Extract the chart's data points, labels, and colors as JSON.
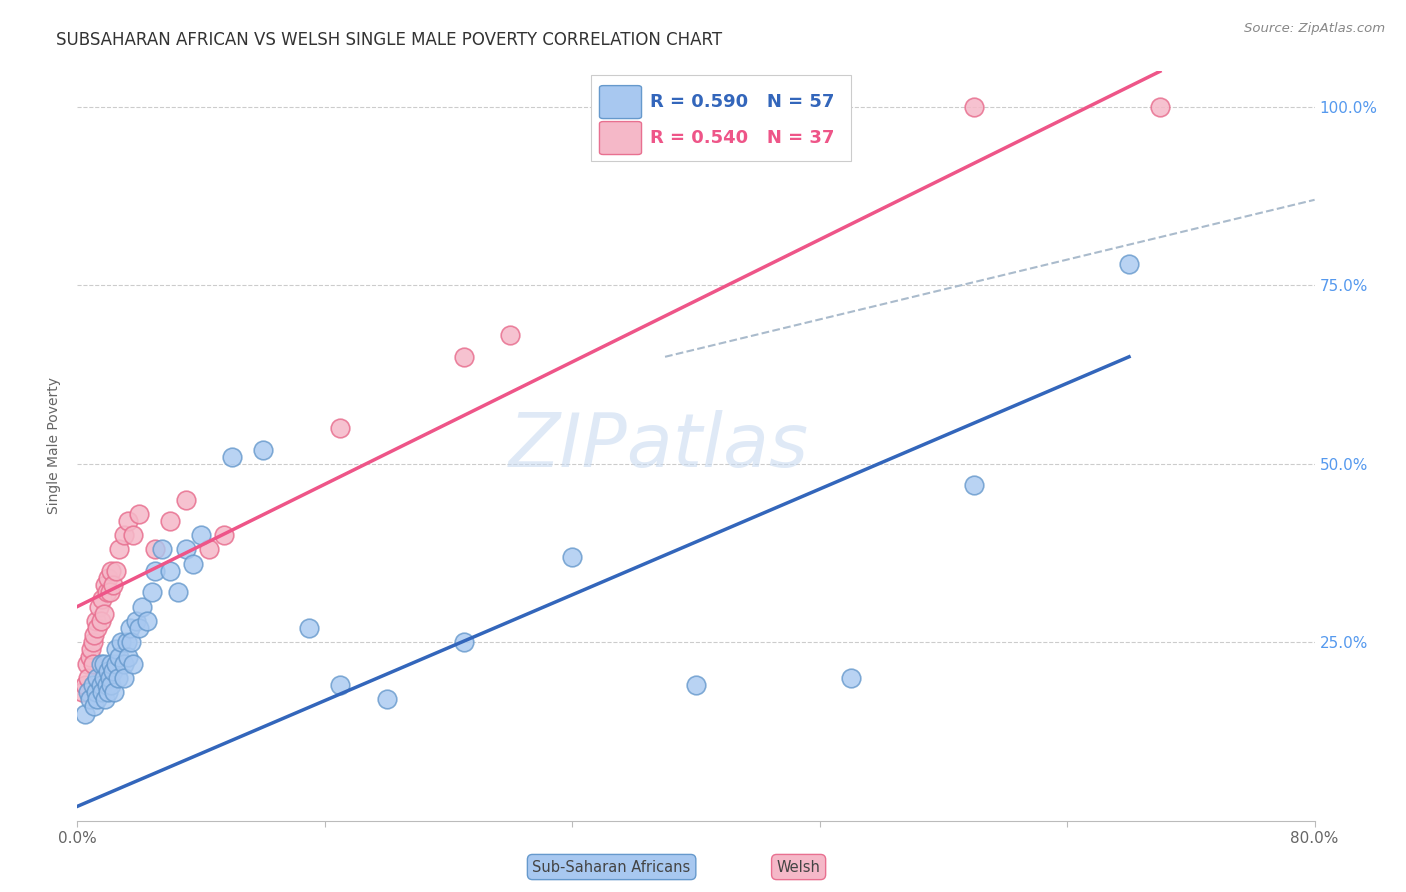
{
  "title": "SUBSAHARAN AFRICAN VS WELSH SINGLE MALE POVERTY CORRELATION CHART",
  "source": "Source: ZipAtlas.com",
  "ylabel": "Single Male Poverty",
  "blue_R": 0.59,
  "blue_N": 57,
  "pink_R": 0.54,
  "pink_N": 37,
  "blue_scatter_color": "#A8C8F0",
  "pink_scatter_color": "#F5B8C8",
  "blue_edge_color": "#6699CC",
  "pink_edge_color": "#E87090",
  "blue_line_color": "#3366BB",
  "pink_line_color": "#EE5588",
  "dashed_line_color": "#AABBCC",
  "background_color": "#FFFFFF",
  "grid_color": "#CCCCCC",
  "title_color": "#333333",
  "right_axis_color": "#5599EE",
  "watermark_color": "#C5D8F0",
  "legend_text_blue": "R = 0.590   N = 57",
  "legend_text_pink": "R = 0.540   N = 37",
  "bottom_legend_blue": "Sub-Saharan Africans",
  "bottom_legend_pink": "Welsh",
  "blue_points_x": [
    0.005,
    0.007,
    0.008,
    0.01,
    0.011,
    0.012,
    0.013,
    0.013,
    0.015,
    0.015,
    0.016,
    0.017,
    0.017,
    0.018,
    0.019,
    0.02,
    0.02,
    0.021,
    0.022,
    0.022,
    0.023,
    0.024,
    0.025,
    0.025,
    0.026,
    0.027,
    0.028,
    0.03,
    0.03,
    0.032,
    0.033,
    0.034,
    0.035,
    0.036,
    0.038,
    0.04,
    0.042,
    0.045,
    0.048,
    0.05,
    0.055,
    0.06,
    0.065,
    0.07,
    0.075,
    0.08,
    0.1,
    0.12,
    0.15,
    0.17,
    0.2,
    0.25,
    0.32,
    0.4,
    0.5,
    0.58,
    0.68
  ],
  "blue_points_y": [
    0.15,
    0.18,
    0.17,
    0.19,
    0.16,
    0.18,
    0.2,
    0.17,
    0.19,
    0.22,
    0.18,
    0.2,
    0.22,
    0.17,
    0.19,
    0.21,
    0.18,
    0.2,
    0.22,
    0.19,
    0.21,
    0.18,
    0.22,
    0.24,
    0.2,
    0.23,
    0.25,
    0.22,
    0.2,
    0.25,
    0.23,
    0.27,
    0.25,
    0.22,
    0.28,
    0.27,
    0.3,
    0.28,
    0.32,
    0.35,
    0.38,
    0.35,
    0.32,
    0.38,
    0.36,
    0.4,
    0.51,
    0.52,
    0.27,
    0.19,
    0.17,
    0.25,
    0.37,
    0.19,
    0.2,
    0.47,
    0.78
  ],
  "pink_points_x": [
    0.003,
    0.005,
    0.006,
    0.007,
    0.008,
    0.009,
    0.01,
    0.01,
    0.011,
    0.012,
    0.013,
    0.014,
    0.015,
    0.016,
    0.017,
    0.018,
    0.019,
    0.02,
    0.021,
    0.022,
    0.023,
    0.025,
    0.027,
    0.03,
    0.033,
    0.036,
    0.04,
    0.05,
    0.06,
    0.07,
    0.085,
    0.095,
    0.17,
    0.25,
    0.28,
    0.58,
    0.7
  ],
  "pink_points_y": [
    0.18,
    0.19,
    0.22,
    0.2,
    0.23,
    0.24,
    0.22,
    0.25,
    0.26,
    0.28,
    0.27,
    0.3,
    0.28,
    0.31,
    0.29,
    0.33,
    0.32,
    0.34,
    0.32,
    0.35,
    0.33,
    0.35,
    0.38,
    0.4,
    0.42,
    0.4,
    0.43,
    0.38,
    0.42,
    0.45,
    0.38,
    0.4,
    0.55,
    0.65,
    0.68,
    1.0,
    1.0
  ],
  "xlim": [
    0.0,
    0.8
  ],
  "ylim": [
    0.0,
    1.05
  ],
  "blue_line_x0": 0.0,
  "blue_line_y0": 0.02,
  "blue_line_x1": 0.68,
  "blue_line_y1": 0.65,
  "pink_line_x0": 0.0,
  "pink_line_y0": 0.3,
  "pink_line_x1": 0.7,
  "pink_line_y1": 1.05,
  "dash_line_x0": 0.38,
  "dash_line_y0": 0.65,
  "dash_line_x1": 0.8,
  "dash_line_y1": 0.87
}
